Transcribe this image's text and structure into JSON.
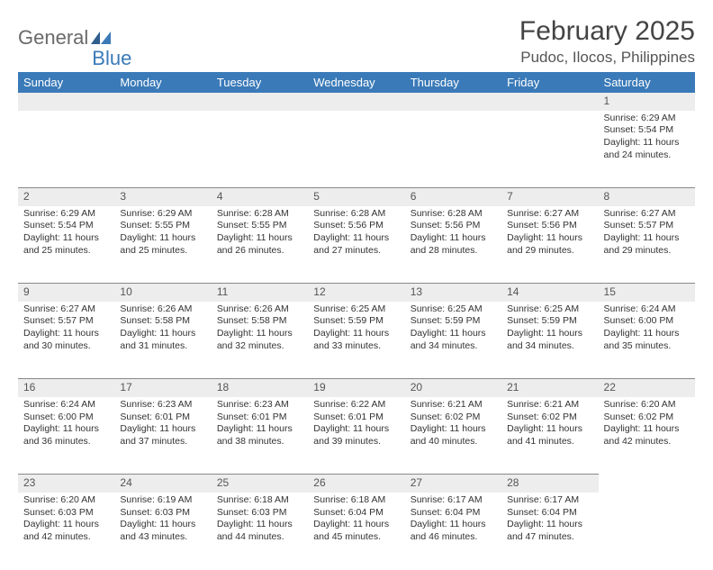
{
  "logo": {
    "part1": "General",
    "part2": "Blue"
  },
  "title": "February 2025",
  "location": "Pudoc, Ilocos, Philippines",
  "colors": {
    "header_bg": "#3a7ab8",
    "header_text": "#ffffff",
    "daynum_bg": "#ededed",
    "border": "#888888",
    "body_text": "#333333",
    "title_text": "#444444",
    "logo_gray": "#6a6a6a",
    "logo_blue": "#3a7ab8",
    "page_bg": "#ffffff"
  },
  "weekdays": [
    "Sunday",
    "Monday",
    "Tuesday",
    "Wednesday",
    "Thursday",
    "Friday",
    "Saturday"
  ],
  "weeks": [
    [
      null,
      null,
      null,
      null,
      null,
      null,
      {
        "n": "1",
        "sr": "Sunrise: 6:29 AM",
        "ss": "Sunset: 5:54 PM",
        "d1": "Daylight: 11 hours",
        "d2": "and 24 minutes."
      }
    ],
    [
      {
        "n": "2",
        "sr": "Sunrise: 6:29 AM",
        "ss": "Sunset: 5:54 PM",
        "d1": "Daylight: 11 hours",
        "d2": "and 25 minutes."
      },
      {
        "n": "3",
        "sr": "Sunrise: 6:29 AM",
        "ss": "Sunset: 5:55 PM",
        "d1": "Daylight: 11 hours",
        "d2": "and 25 minutes."
      },
      {
        "n": "4",
        "sr": "Sunrise: 6:28 AM",
        "ss": "Sunset: 5:55 PM",
        "d1": "Daylight: 11 hours",
        "d2": "and 26 minutes."
      },
      {
        "n": "5",
        "sr": "Sunrise: 6:28 AM",
        "ss": "Sunset: 5:56 PM",
        "d1": "Daylight: 11 hours",
        "d2": "and 27 minutes."
      },
      {
        "n": "6",
        "sr": "Sunrise: 6:28 AM",
        "ss": "Sunset: 5:56 PM",
        "d1": "Daylight: 11 hours",
        "d2": "and 28 minutes."
      },
      {
        "n": "7",
        "sr": "Sunrise: 6:27 AM",
        "ss": "Sunset: 5:56 PM",
        "d1": "Daylight: 11 hours",
        "d2": "and 29 minutes."
      },
      {
        "n": "8",
        "sr": "Sunrise: 6:27 AM",
        "ss": "Sunset: 5:57 PM",
        "d1": "Daylight: 11 hours",
        "d2": "and 29 minutes."
      }
    ],
    [
      {
        "n": "9",
        "sr": "Sunrise: 6:27 AM",
        "ss": "Sunset: 5:57 PM",
        "d1": "Daylight: 11 hours",
        "d2": "and 30 minutes."
      },
      {
        "n": "10",
        "sr": "Sunrise: 6:26 AM",
        "ss": "Sunset: 5:58 PM",
        "d1": "Daylight: 11 hours",
        "d2": "and 31 minutes."
      },
      {
        "n": "11",
        "sr": "Sunrise: 6:26 AM",
        "ss": "Sunset: 5:58 PM",
        "d1": "Daylight: 11 hours",
        "d2": "and 32 minutes."
      },
      {
        "n": "12",
        "sr": "Sunrise: 6:25 AM",
        "ss": "Sunset: 5:59 PM",
        "d1": "Daylight: 11 hours",
        "d2": "and 33 minutes."
      },
      {
        "n": "13",
        "sr": "Sunrise: 6:25 AM",
        "ss": "Sunset: 5:59 PM",
        "d1": "Daylight: 11 hours",
        "d2": "and 34 minutes."
      },
      {
        "n": "14",
        "sr": "Sunrise: 6:25 AM",
        "ss": "Sunset: 5:59 PM",
        "d1": "Daylight: 11 hours",
        "d2": "and 34 minutes."
      },
      {
        "n": "15",
        "sr": "Sunrise: 6:24 AM",
        "ss": "Sunset: 6:00 PM",
        "d1": "Daylight: 11 hours",
        "d2": "and 35 minutes."
      }
    ],
    [
      {
        "n": "16",
        "sr": "Sunrise: 6:24 AM",
        "ss": "Sunset: 6:00 PM",
        "d1": "Daylight: 11 hours",
        "d2": "and 36 minutes."
      },
      {
        "n": "17",
        "sr": "Sunrise: 6:23 AM",
        "ss": "Sunset: 6:01 PM",
        "d1": "Daylight: 11 hours",
        "d2": "and 37 minutes."
      },
      {
        "n": "18",
        "sr": "Sunrise: 6:23 AM",
        "ss": "Sunset: 6:01 PM",
        "d1": "Daylight: 11 hours",
        "d2": "and 38 minutes."
      },
      {
        "n": "19",
        "sr": "Sunrise: 6:22 AM",
        "ss": "Sunset: 6:01 PM",
        "d1": "Daylight: 11 hours",
        "d2": "and 39 minutes."
      },
      {
        "n": "20",
        "sr": "Sunrise: 6:21 AM",
        "ss": "Sunset: 6:02 PM",
        "d1": "Daylight: 11 hours",
        "d2": "and 40 minutes."
      },
      {
        "n": "21",
        "sr": "Sunrise: 6:21 AM",
        "ss": "Sunset: 6:02 PM",
        "d1": "Daylight: 11 hours",
        "d2": "and 41 minutes."
      },
      {
        "n": "22",
        "sr": "Sunrise: 6:20 AM",
        "ss": "Sunset: 6:02 PM",
        "d1": "Daylight: 11 hours",
        "d2": "and 42 minutes."
      }
    ],
    [
      {
        "n": "23",
        "sr": "Sunrise: 6:20 AM",
        "ss": "Sunset: 6:03 PM",
        "d1": "Daylight: 11 hours",
        "d2": "and 42 minutes."
      },
      {
        "n": "24",
        "sr": "Sunrise: 6:19 AM",
        "ss": "Sunset: 6:03 PM",
        "d1": "Daylight: 11 hours",
        "d2": "and 43 minutes."
      },
      {
        "n": "25",
        "sr": "Sunrise: 6:18 AM",
        "ss": "Sunset: 6:03 PM",
        "d1": "Daylight: 11 hours",
        "d2": "and 44 minutes."
      },
      {
        "n": "26",
        "sr": "Sunrise: 6:18 AM",
        "ss": "Sunset: 6:04 PM",
        "d1": "Daylight: 11 hours",
        "d2": "and 45 minutes."
      },
      {
        "n": "27",
        "sr": "Sunrise: 6:17 AM",
        "ss": "Sunset: 6:04 PM",
        "d1": "Daylight: 11 hours",
        "d2": "and 46 minutes."
      },
      {
        "n": "28",
        "sr": "Sunrise: 6:17 AM",
        "ss": "Sunset: 6:04 PM",
        "d1": "Daylight: 11 hours",
        "d2": "and 47 minutes."
      },
      null
    ]
  ]
}
